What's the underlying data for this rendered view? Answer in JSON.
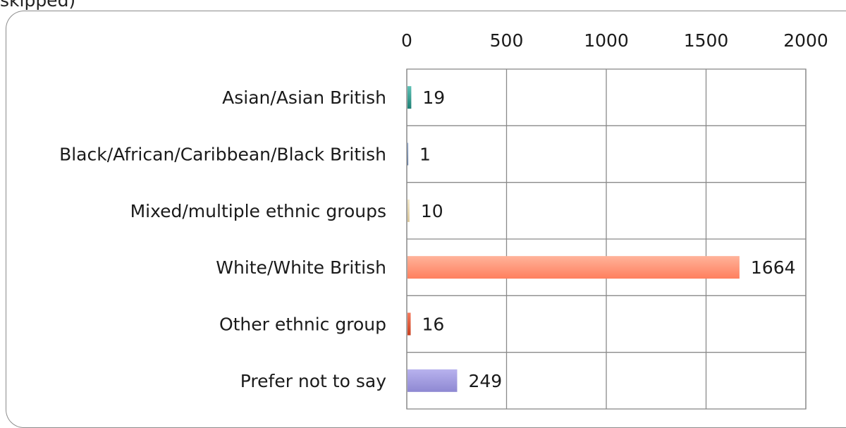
{
  "header": {
    "text": "skipped)"
  },
  "chart_data": {
    "type": "bar",
    "orientation": "horizontal",
    "categories": [
      "Asian/Asian British",
      "Black/African/Caribbean/Black British",
      "Mixed/multiple ethnic groups",
      "White/White British",
      "Other ethnic group",
      "Prefer not to say"
    ],
    "values": [
      19,
      1,
      10,
      1664,
      16,
      249
    ],
    "colors": [
      "#2a9d8f",
      "#4a6fa5",
      "#e8d8b0",
      "#ff8c6b",
      "#e0502e",
      "#9e98dc"
    ],
    "xlim": [
      0,
      2000
    ],
    "xticks": [
      0,
      500,
      1000,
      1500,
      2000
    ],
    "axis_position": "top",
    "grid": true,
    "legend": "none"
  }
}
